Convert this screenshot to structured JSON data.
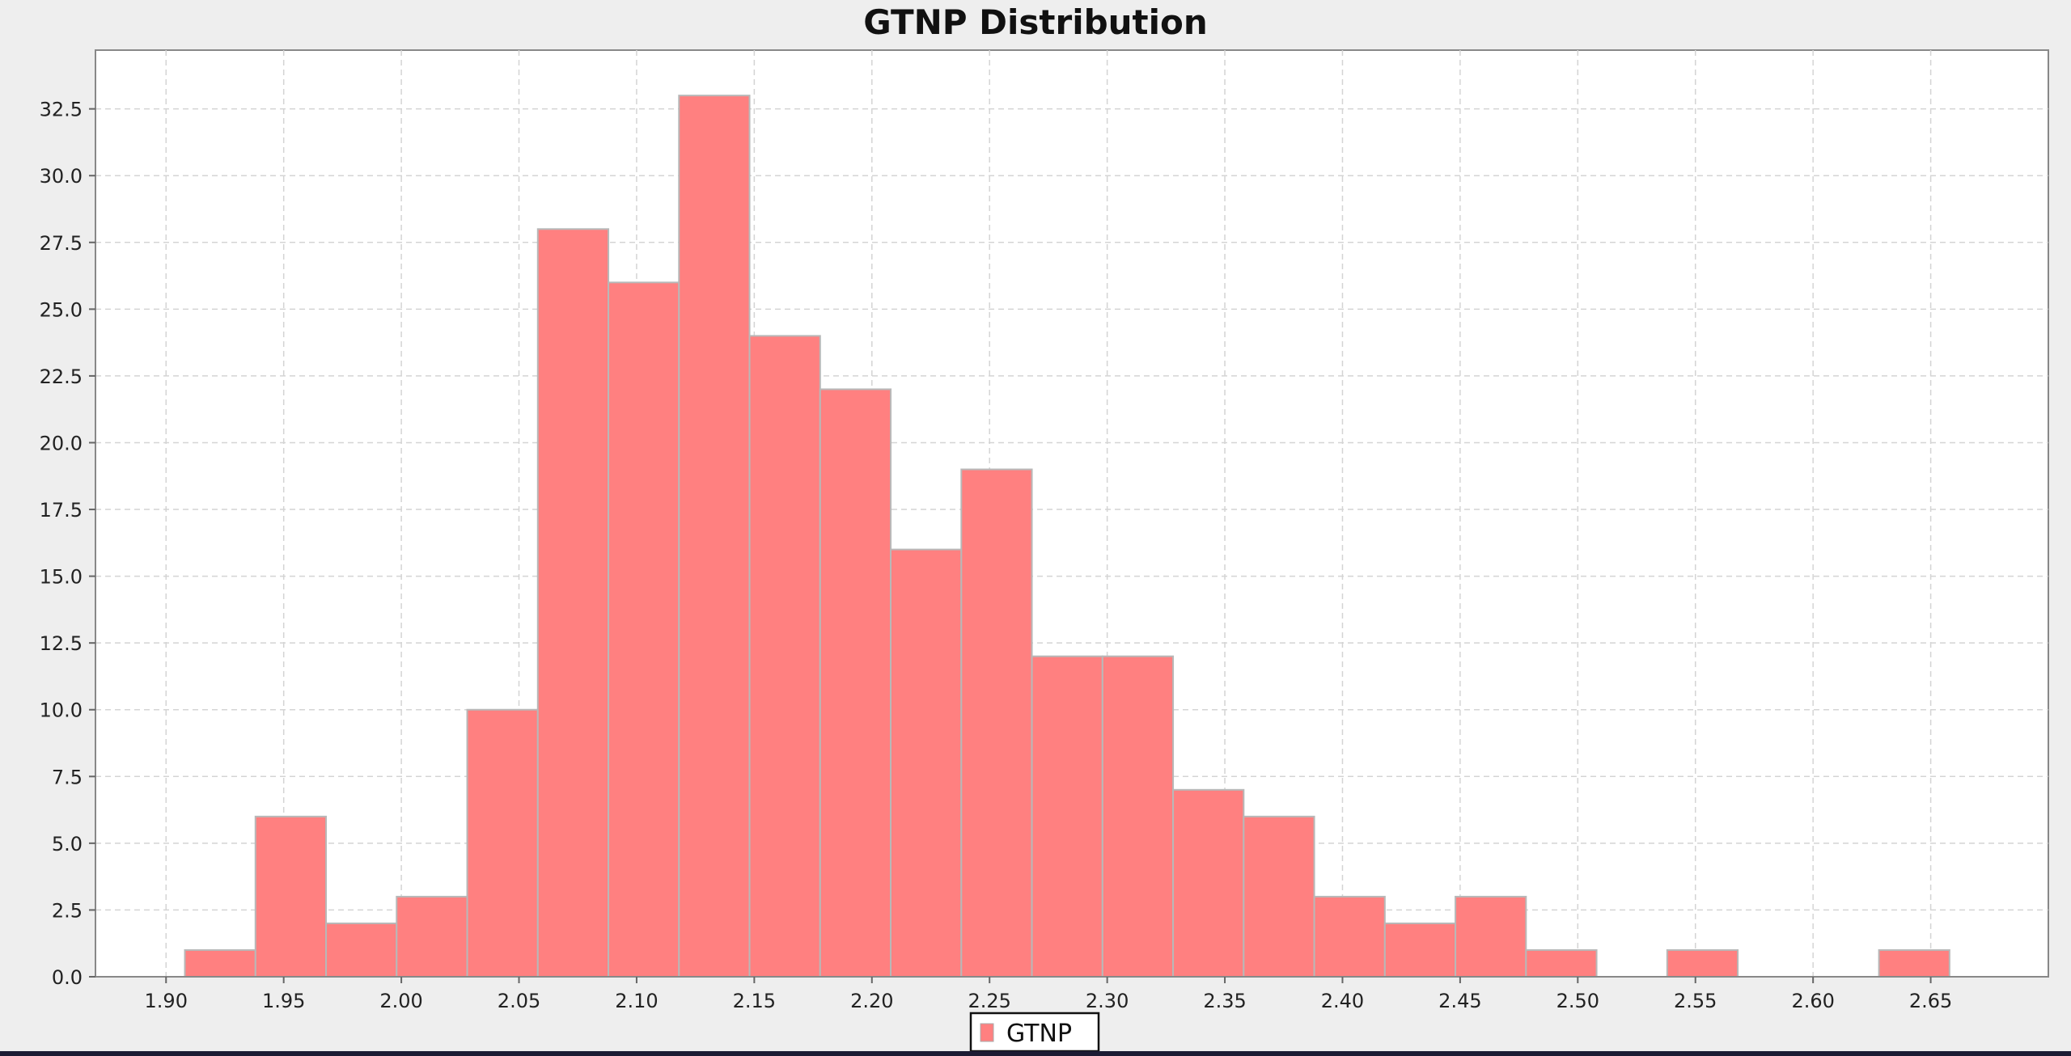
{
  "chart_data": {
    "type": "bar",
    "title": "GTNP Distribution",
    "xlabel": "",
    "ylabel": "",
    "xlim": [
      1.87,
      2.7
    ],
    "ylim": [
      0,
      34.7
    ],
    "x_ticks": [
      "1.90",
      "1.95",
      "2.00",
      "2.05",
      "2.10",
      "2.15",
      "2.20",
      "2.25",
      "2.30",
      "2.35",
      "2.40",
      "2.45",
      "2.50",
      "2.55",
      "2.60",
      "2.65"
    ],
    "y_ticks": [
      "0.0",
      "2.5",
      "5.0",
      "7.5",
      "10.0",
      "12.5",
      "15.0",
      "17.5",
      "20.0",
      "22.5",
      "25.0",
      "27.5",
      "30.0",
      "32.5"
    ],
    "bin_width": 0.03,
    "series": [
      {
        "name": "GTNP",
        "color": "#ff8080",
        "bin_starts": [
          1.908,
          1.938,
          1.968,
          1.998,
          2.028,
          2.058,
          2.088,
          2.118,
          2.148,
          2.178,
          2.208,
          2.238,
          2.268,
          2.298,
          2.328,
          2.358,
          2.388,
          2.418,
          2.448,
          2.478,
          2.508,
          2.538,
          2.568,
          2.598,
          2.628
        ],
        "values": [
          1,
          6,
          2,
          3,
          10,
          28,
          26,
          33,
          24,
          22,
          16,
          19,
          12,
          12,
          7,
          6,
          3,
          2,
          3,
          1,
          0,
          1,
          0,
          0,
          1
        ]
      }
    ],
    "grid": true,
    "legend": "bottom-center"
  },
  "legend": {
    "label": "GTNP"
  }
}
